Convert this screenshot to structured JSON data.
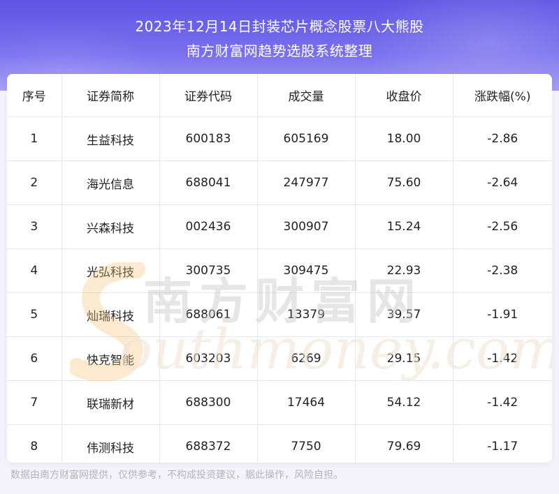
{
  "header": {
    "title_line1": "2023年12月14日封装芯片概念股票八大熊股",
    "title_line2": "南方财富网趋势选股系统整理"
  },
  "table": {
    "columns": [
      "序号",
      "证券简称",
      "证券代码",
      "成交量",
      "收盘价",
      "涨跌幅(%)"
    ],
    "rows": [
      [
        "1",
        "生益科技",
        "600183",
        "605169",
        "18.00",
        "-2.86"
      ],
      [
        "2",
        "海光信息",
        "688041",
        "247977",
        "75.60",
        "-2.64"
      ],
      [
        "3",
        "兴森科技",
        "002436",
        "300907",
        "15.24",
        "-2.56"
      ],
      [
        "4",
        "光弘科技",
        "300735",
        "309475",
        "22.93",
        "-2.38"
      ],
      [
        "5",
        "灿瑞科技",
        "688061",
        "13379",
        "39.57",
        "-1.91"
      ],
      [
        "6",
        "快克智能",
        "603203",
        "6269",
        "29.15",
        "-1.42"
      ],
      [
        "7",
        "联瑞新材",
        "688300",
        "17464",
        "54.12",
        "-1.42"
      ],
      [
        "8",
        "伟测科技",
        "688372",
        "7750",
        "79.69",
        "-1.17"
      ]
    ]
  },
  "watermark": {
    "cn": "南方财富网",
    "en": "outhmoney.com"
  },
  "footer": {
    "disclaimer": "数据由南方财富网提供，仅供参考，不构成投资建议，据此操作，风险自担。"
  },
  "colors": {
    "header_top": "#5f54e4",
    "header_bottom": "#a39cf4",
    "text": "#222222",
    "grid": "#e6e6ee",
    "footer_text": "#b4b4c0"
  }
}
